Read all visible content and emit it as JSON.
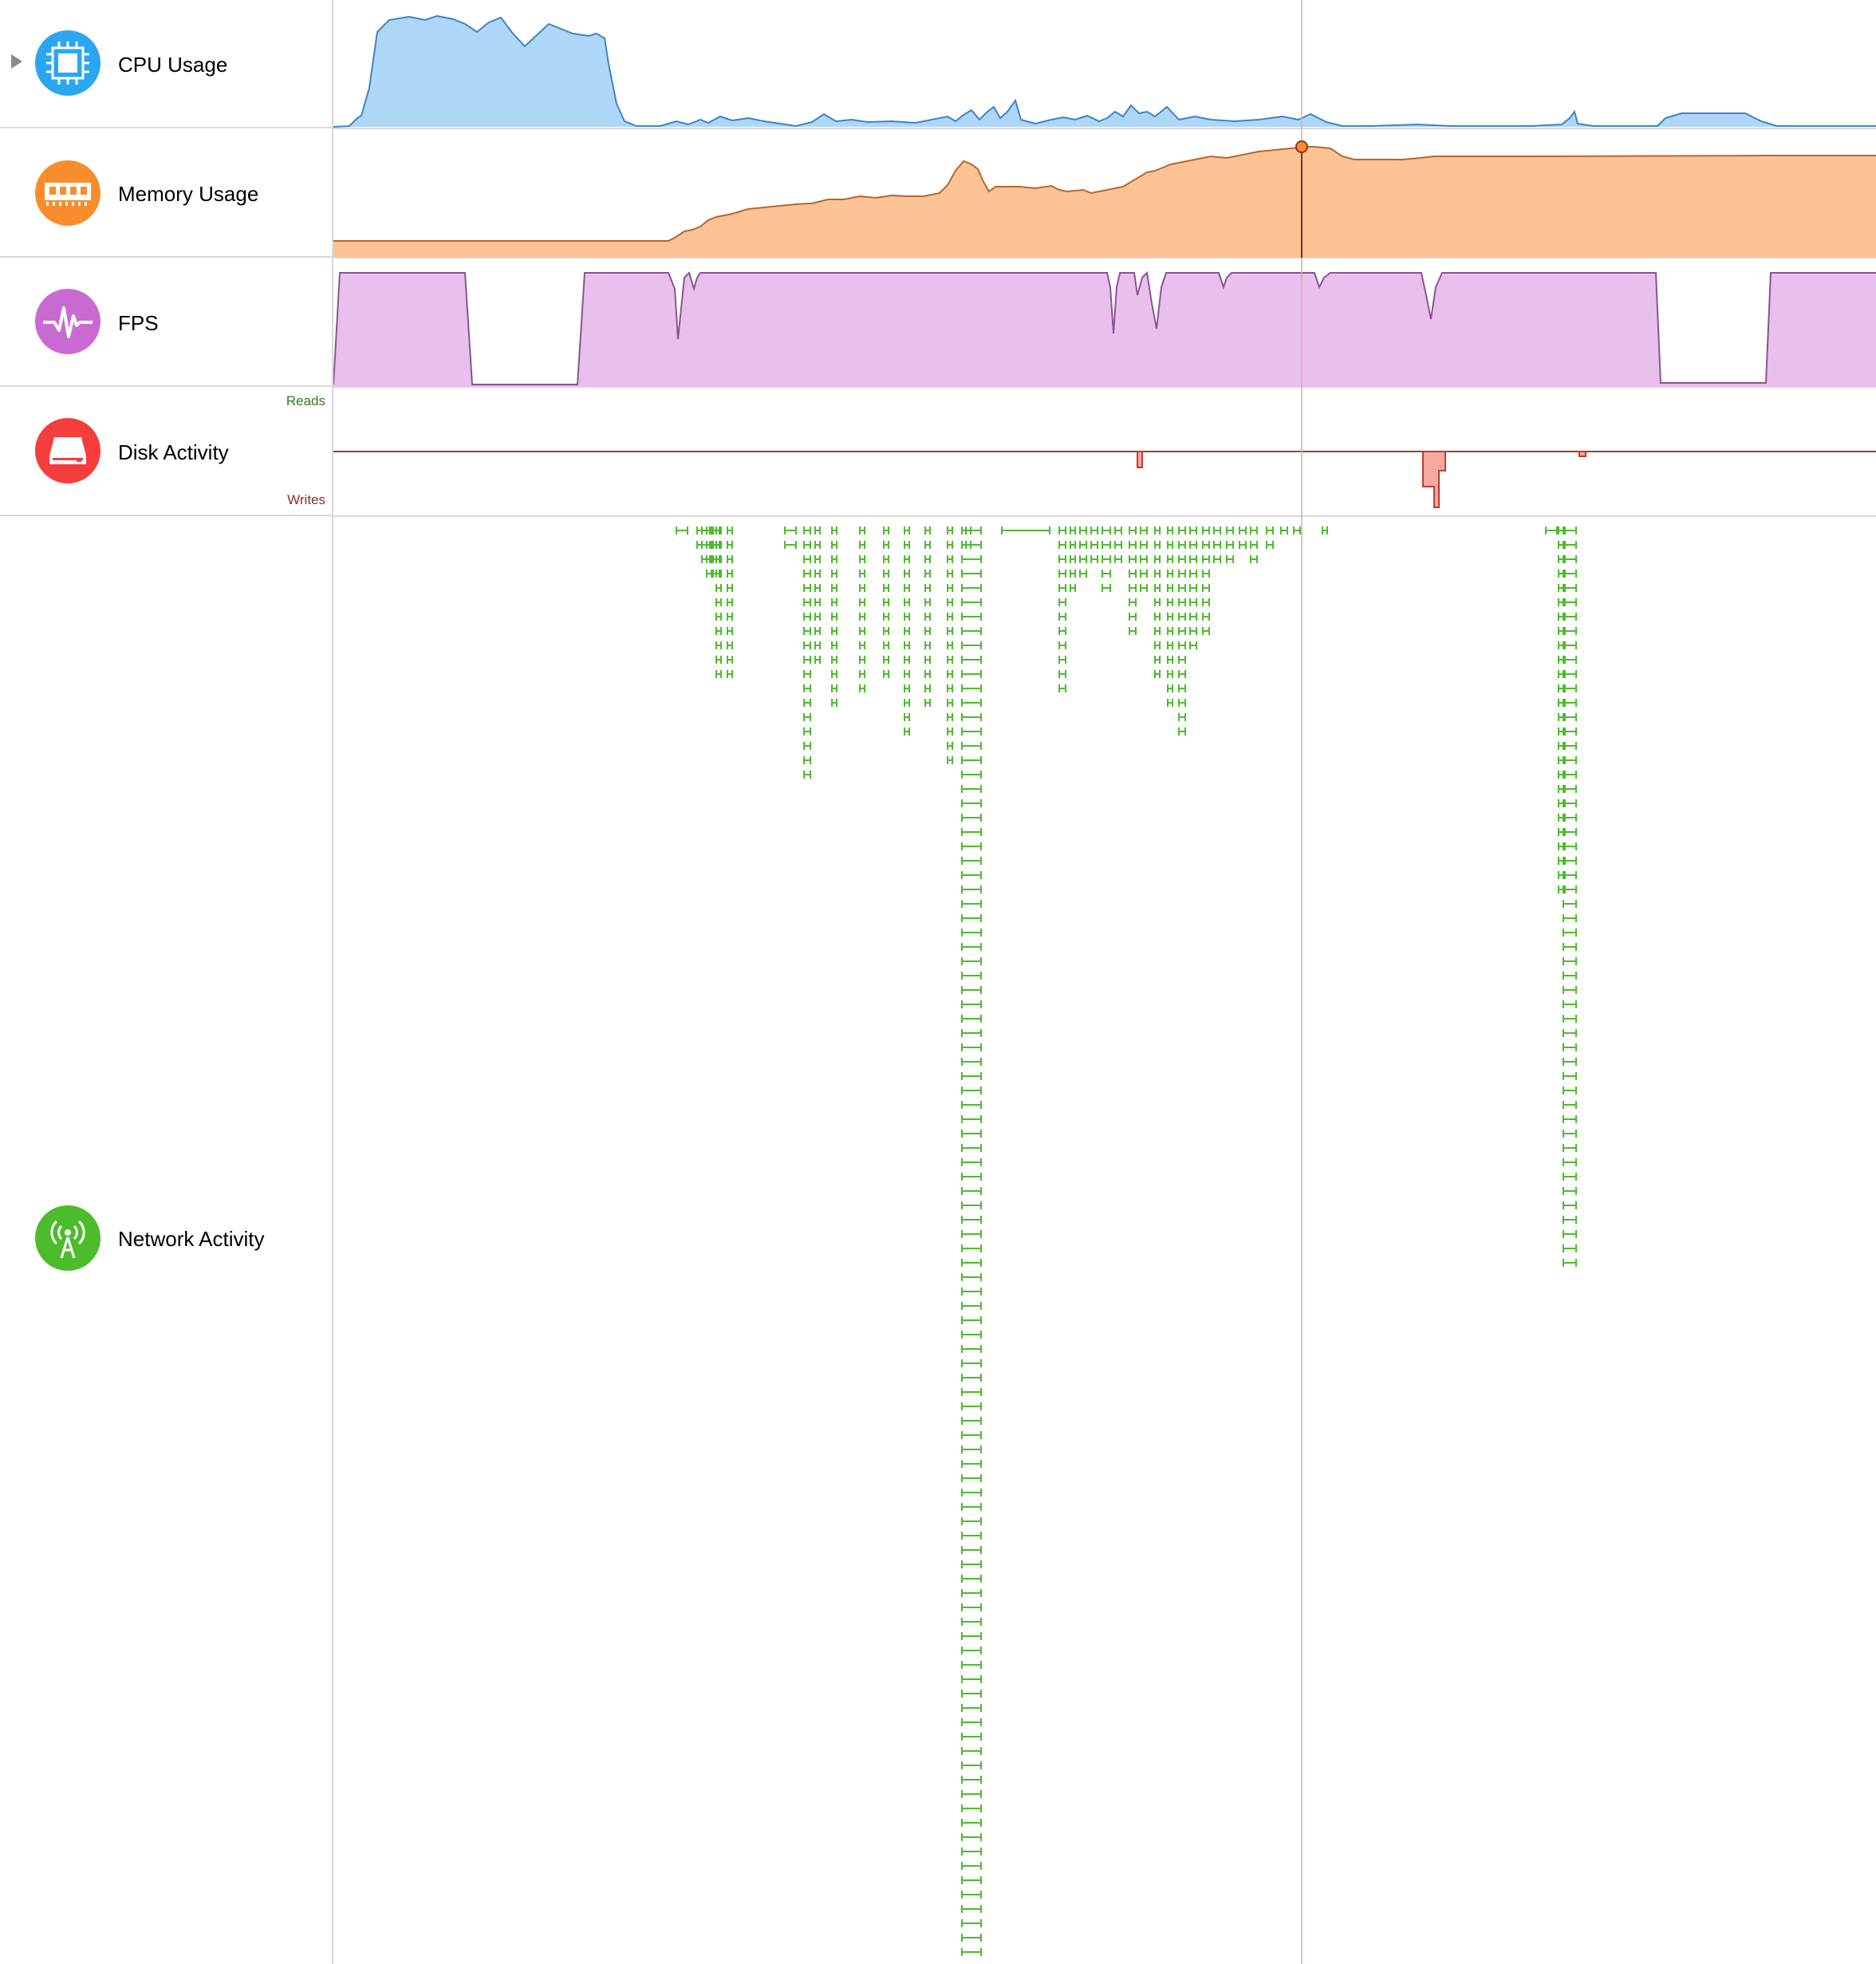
{
  "tracks": {
    "cpu": {
      "label": "CPU Usage",
      "icon": "cpu-chip-icon",
      "color": "#2ba6f0"
    },
    "memory": {
      "label": "Memory Usage",
      "icon": "ram-module-icon",
      "color": "#f98c2c"
    },
    "fps": {
      "label": "FPS",
      "icon": "pulse-icon",
      "color": "#c96ad3"
    },
    "disk": {
      "label": "Disk Activity",
      "icon": "hard-drive-icon",
      "color": "#f53d3d",
      "reads_label": "Reads",
      "writes_label": "Writes"
    },
    "network": {
      "label": "Network Activity",
      "icon": "antenna-icon",
      "color": "#4cbb2c"
    }
  },
  "colors": {
    "cpu_fill": "#aed6f7",
    "cpu_line": "#3d84c7",
    "mem_fill": "#fdc394",
    "mem_line": "#b9652e",
    "fps_fill": "#e7c0ec",
    "fps_line": "#8c5394",
    "disk_fill": "#f7a99f",
    "disk_line": "#c23a2e",
    "disk_axis": "#8a4a2a",
    "net_line": "#4cbb2c",
    "cursor": "#e9a3a3"
  }
}
